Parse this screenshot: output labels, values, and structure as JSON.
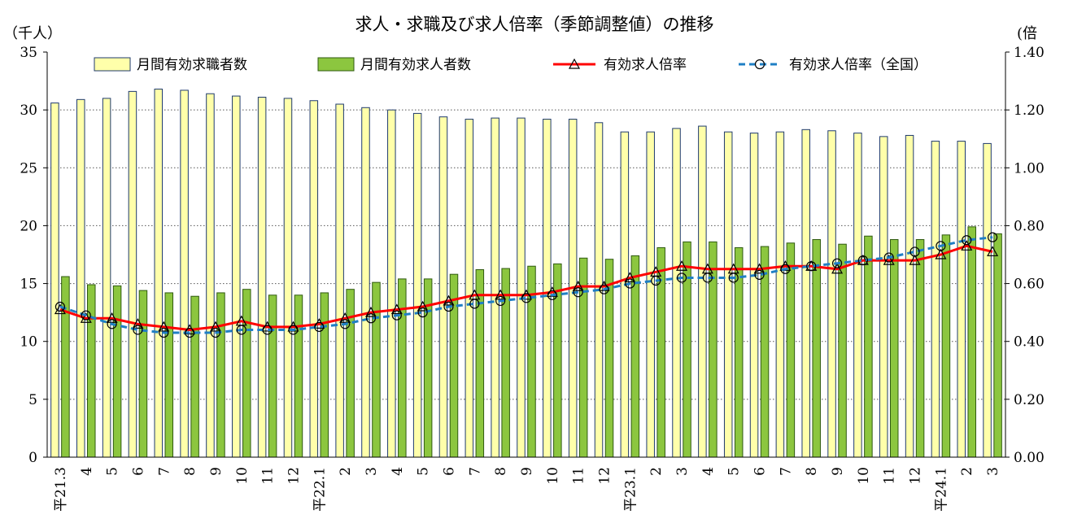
{
  "chart_data": {
    "type": "bar",
    "title": "求人・求職及び求人倍率（季節調整値）の推移",
    "y_left_unit": "（千人）",
    "y_right_unit": "(倍",
    "y_left_lim": [
      0,
      35
    ],
    "y_left_ticks": [
      "0",
      "5",
      "10",
      "15",
      "20",
      "25",
      "30",
      "35"
    ],
    "y_right_lim": [
      0,
      1.4
    ],
    "y_right_ticks": [
      "0.00",
      "0.20",
      "0.40",
      "0.60",
      "0.80",
      "1.00",
      "1.20",
      "1.40"
    ],
    "grid": "horizontal-dotted",
    "legend_position": "top",
    "categories": [
      "平21.3",
      "4",
      "5",
      "6",
      "7",
      "8",
      "9",
      "10",
      "11",
      "12",
      "平22.1",
      "2",
      "3",
      "4",
      "5",
      "6",
      "7",
      "8",
      "9",
      "10",
      "11",
      "12",
      "平23.1",
      "2",
      "3",
      "4",
      "5",
      "6",
      "7",
      "8",
      "9",
      "10",
      "11",
      "12",
      "平24.1",
      "2",
      "3"
    ],
    "series": [
      {
        "name": "月間有効求職者数",
        "kind": "bar",
        "axis": "left",
        "color": "#ffffaa",
        "edge": "#1f3a6e",
        "values": [
          30.6,
          30.9,
          31.0,
          31.6,
          31.8,
          31.7,
          31.4,
          31.2,
          31.1,
          31.0,
          30.8,
          30.5,
          30.2,
          30.0,
          29.7,
          29.4,
          29.2,
          29.3,
          29.3,
          29.2,
          29.2,
          28.9,
          28.1,
          28.1,
          28.4,
          28.6,
          28.1,
          28.0,
          28.1,
          28.3,
          28.2,
          28.0,
          27.7,
          27.8,
          27.3,
          27.3,
          27.1
        ]
      },
      {
        "name": "月間有効求人者数",
        "kind": "bar",
        "axis": "left",
        "color": "#8cc63f",
        "edge": "#2f5a10",
        "values": [
          15.6,
          14.9,
          14.8,
          14.4,
          14.2,
          13.9,
          14.2,
          14.5,
          14.0,
          14.0,
          14.2,
          14.5,
          15.1,
          15.4,
          15.4,
          15.8,
          16.2,
          16.3,
          16.5,
          16.7,
          17.2,
          17.1,
          17.4,
          18.1,
          18.6,
          18.6,
          18.1,
          18.2,
          18.5,
          18.8,
          18.4,
          19.1,
          18.8,
          18.8,
          19.2,
          19.9,
          19.3
        ]
      },
      {
        "name": "有効求人倍率",
        "kind": "line",
        "axis": "right",
        "color": "#ff0000",
        "marker": "triangle",
        "values": [
          0.51,
          0.48,
          0.48,
          0.46,
          0.45,
          0.44,
          0.45,
          0.47,
          0.45,
          0.45,
          0.46,
          0.48,
          0.5,
          0.51,
          0.52,
          0.54,
          0.56,
          0.56,
          0.56,
          0.57,
          0.59,
          0.59,
          0.62,
          0.64,
          0.66,
          0.65,
          0.65,
          0.65,
          0.66,
          0.66,
          0.65,
          0.68,
          0.68,
          0.68,
          0.7,
          0.73,
          0.71
        ]
      },
      {
        "name": "有効求人倍率（全国）",
        "kind": "line",
        "axis": "right",
        "color": "#1f7fc4",
        "dashed": true,
        "marker": "circle",
        "values": [
          0.52,
          0.49,
          0.46,
          0.44,
          0.43,
          0.43,
          0.43,
          0.44,
          0.44,
          0.44,
          0.45,
          0.46,
          0.48,
          0.49,
          0.5,
          0.52,
          0.53,
          0.54,
          0.55,
          0.56,
          0.57,
          0.58,
          0.6,
          0.61,
          0.62,
          0.62,
          0.62,
          0.63,
          0.65,
          0.66,
          0.67,
          0.68,
          0.69,
          0.71,
          0.73,
          0.75,
          0.76
        ]
      }
    ]
  }
}
